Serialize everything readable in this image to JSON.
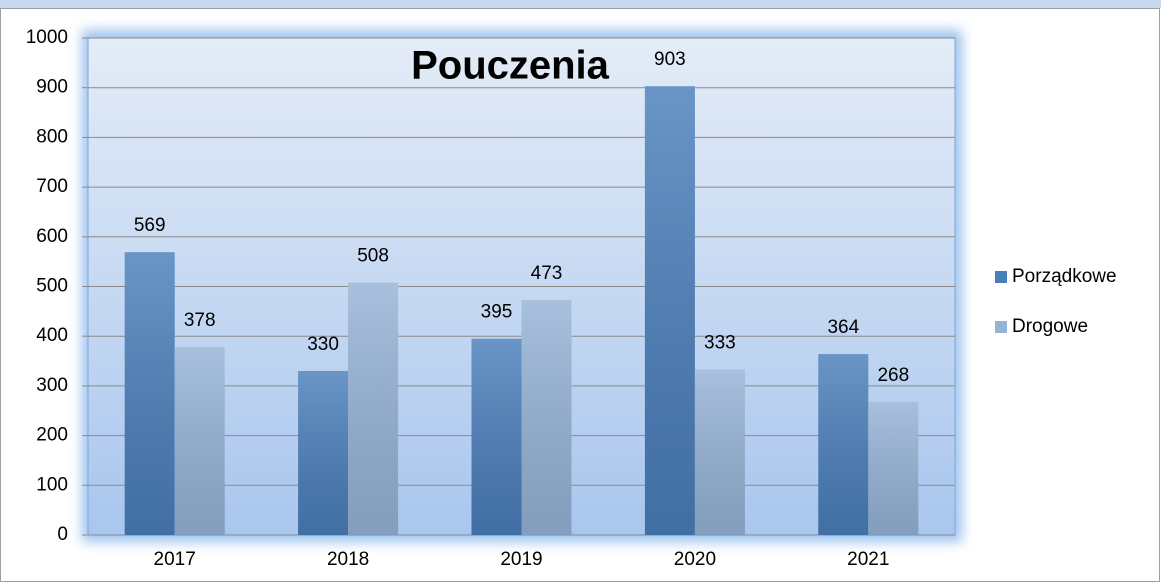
{
  "chart_data": {
    "type": "bar",
    "title": "Pouczenia",
    "categories": [
      "2017",
      "2018",
      "2019",
      "2020",
      "2021"
    ],
    "series": [
      {
        "name": "Porządkowe",
        "color": "#4a7ebb",
        "values": [
          569,
          330,
          395,
          903,
          364
        ]
      },
      {
        "name": "Drogowe",
        "color": "#95b3d7",
        "values": [
          378,
          508,
          473,
          333,
          268
        ]
      }
    ],
    "ylim": [
      0,
      1000
    ],
    "yticks": [
      0,
      100,
      200,
      300,
      400,
      500,
      600,
      700,
      800,
      900,
      1000
    ],
    "grid": true,
    "legend": "right"
  }
}
